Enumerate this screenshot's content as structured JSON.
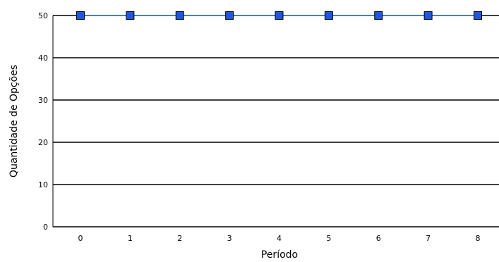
{
  "chart_data": {
    "type": "line",
    "title": "",
    "xlabel": "Período",
    "ylabel": "Quantidade de Opções",
    "x": [
      0,
      1,
      2,
      3,
      4,
      5,
      6,
      7,
      8
    ],
    "x_tick_labels": [
      "0",
      "1",
      "2",
      "3",
      "4",
      "5",
      "6",
      "7",
      "8"
    ],
    "y_ticks": [
      0,
      10,
      20,
      30,
      40,
      50
    ],
    "y_tick_labels": [
      "0",
      "10",
      "20",
      "30",
      "40",
      "50"
    ],
    "ylim": [
      0,
      50
    ],
    "grid": "horizontal",
    "legend": "none",
    "series": [
      {
        "values": [
          50,
          50,
          50,
          50,
          50,
          50,
          50,
          50,
          50
        ],
        "line_color": "#3f7fd6",
        "marker": "square",
        "marker_color": "#1e56e0"
      }
    ]
  }
}
